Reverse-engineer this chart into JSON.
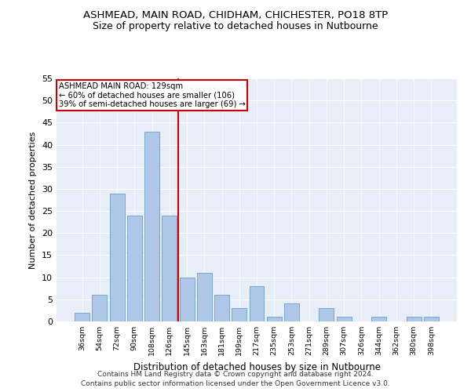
{
  "title1": "ASHMEAD, MAIN ROAD, CHIDHAM, CHICHESTER, PO18 8TP",
  "title2": "Size of property relative to detached houses in Nutbourne",
  "xlabel": "Distribution of detached houses by size in Nutbourne",
  "ylabel": "Number of detached properties",
  "bar_color": "#aec6e8",
  "bar_edge_color": "#6a9fc8",
  "bg_color": "#e8eef8",
  "categories": [
    "36sqm",
    "54sqm",
    "72sqm",
    "90sqm",
    "108sqm",
    "126sqm",
    "145sqm",
    "163sqm",
    "181sqm",
    "199sqm",
    "217sqm",
    "235sqm",
    "253sqm",
    "271sqm",
    "289sqm",
    "307sqm",
    "326sqm",
    "344sqm",
    "362sqm",
    "380sqm",
    "398sqm"
  ],
  "values": [
    2,
    6,
    29,
    24,
    43,
    24,
    10,
    11,
    6,
    3,
    8,
    1,
    4,
    0,
    3,
    1,
    0,
    1,
    0,
    1,
    1
  ],
  "vline_x": 5.5,
  "vline_color": "#cc0000",
  "annotation_line1": "ASHMEAD MAIN ROAD: 129sqm",
  "annotation_line2": "← 60% of detached houses are smaller (106)",
  "annotation_line3": "39% of semi-detached houses are larger (69) →",
  "annotation_box_color": "#ffffff",
  "annotation_box_edge_color": "#cc0000",
  "ylim": [
    0,
    55
  ],
  "yticks": [
    0,
    5,
    10,
    15,
    20,
    25,
    30,
    35,
    40,
    45,
    50,
    55
  ],
  "footnote1": "Contains HM Land Registry data © Crown copyright and database right 2024.",
  "footnote2": "Contains public sector information licensed under the Open Government Licence v3.0."
}
